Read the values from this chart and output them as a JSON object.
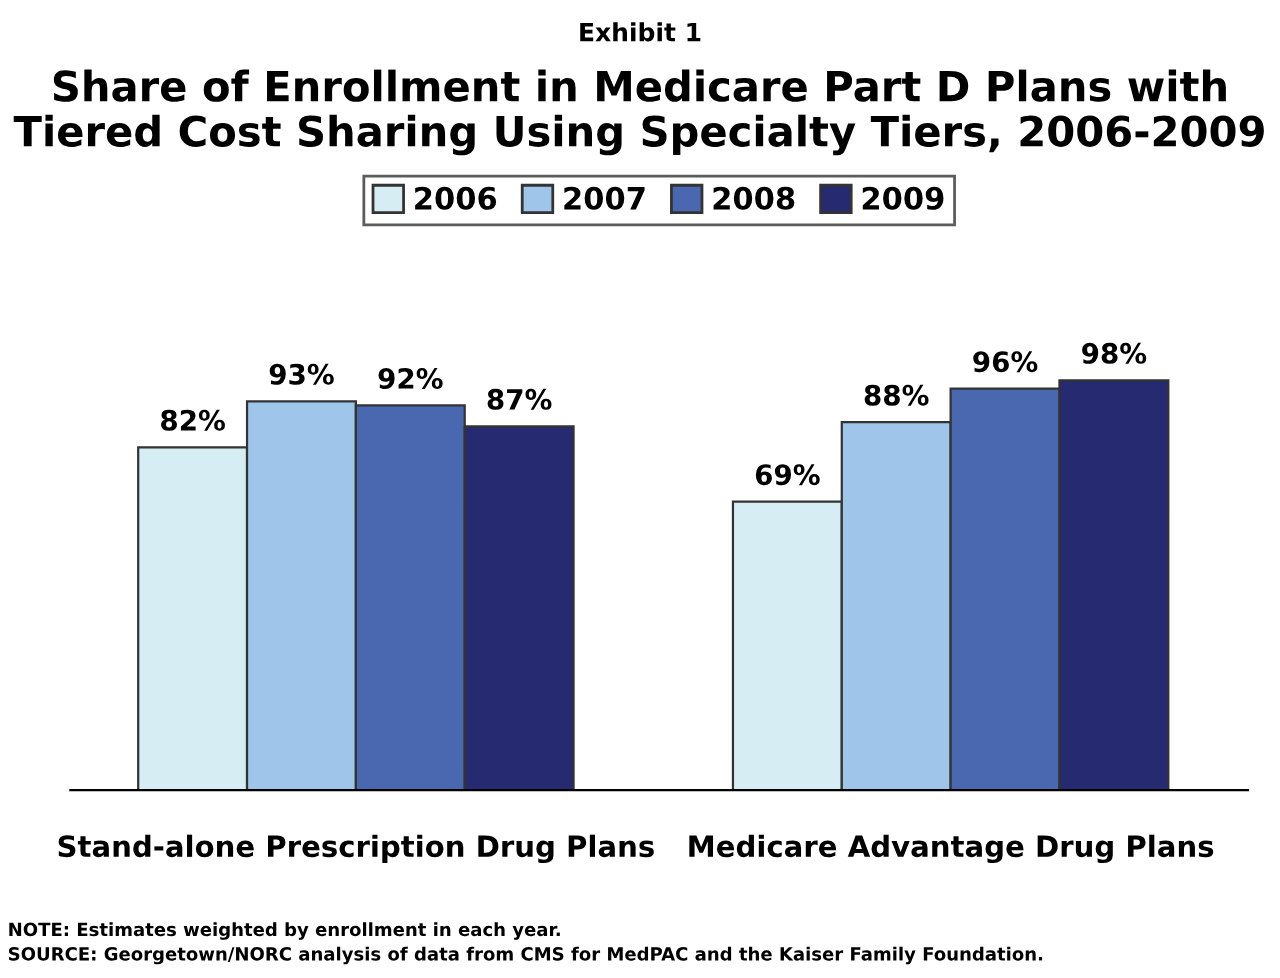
{
  "chart_data": {
    "type": "bar",
    "subtitle": "Exhibit 1",
    "title": "Share of Enrollment in Medicare Part D Plans with\nTiered Cost Sharing Using Specialty Tiers, 2006-2009",
    "categories": [
      "Stand-alone Prescription Drug Plans",
      "Medicare Advantage Drug Plans"
    ],
    "series": [
      {
        "name": "2006",
        "color": "#d6edf3",
        "values": [
          82,
          69
        ],
        "value_labels": [
          "82%",
          "69%"
        ]
      },
      {
        "name": "2007",
        "color": "#9fc6ea",
        "values": [
          93,
          88
        ],
        "value_labels": [
          "93%",
          "88%"
        ]
      },
      {
        "name": "2008",
        "color": "#4a68b0",
        "values": [
          92,
          96
        ],
        "value_labels": [
          "92%",
          "96%"
        ]
      },
      {
        "name": "2009",
        "color": "#262a70",
        "values": [
          87,
          98
        ],
        "value_labels": [
          "87%",
          "98%"
        ]
      }
    ],
    "legend": "top",
    "grid": false,
    "annotations": [
      "NOTE: Estimates weighted by enrollment in each year.",
      "SOURCE: Georgetown/NORC analysis of data from CMS for MedPAC and the Kaiser Family Foundation."
    ]
  }
}
